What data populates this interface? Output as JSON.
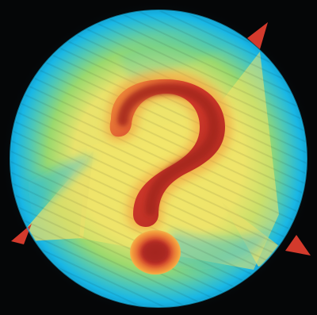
{
  "image": {
    "subject": "question-mark-sphere",
    "colors": {
      "background": "#050607",
      "cyan": "#18b7e6",
      "green": "#6fd36b",
      "yellow": "#f3e66a",
      "orange": "#f39a3b",
      "red": "#d33a2c",
      "darkred": "#a4251d"
    }
  }
}
